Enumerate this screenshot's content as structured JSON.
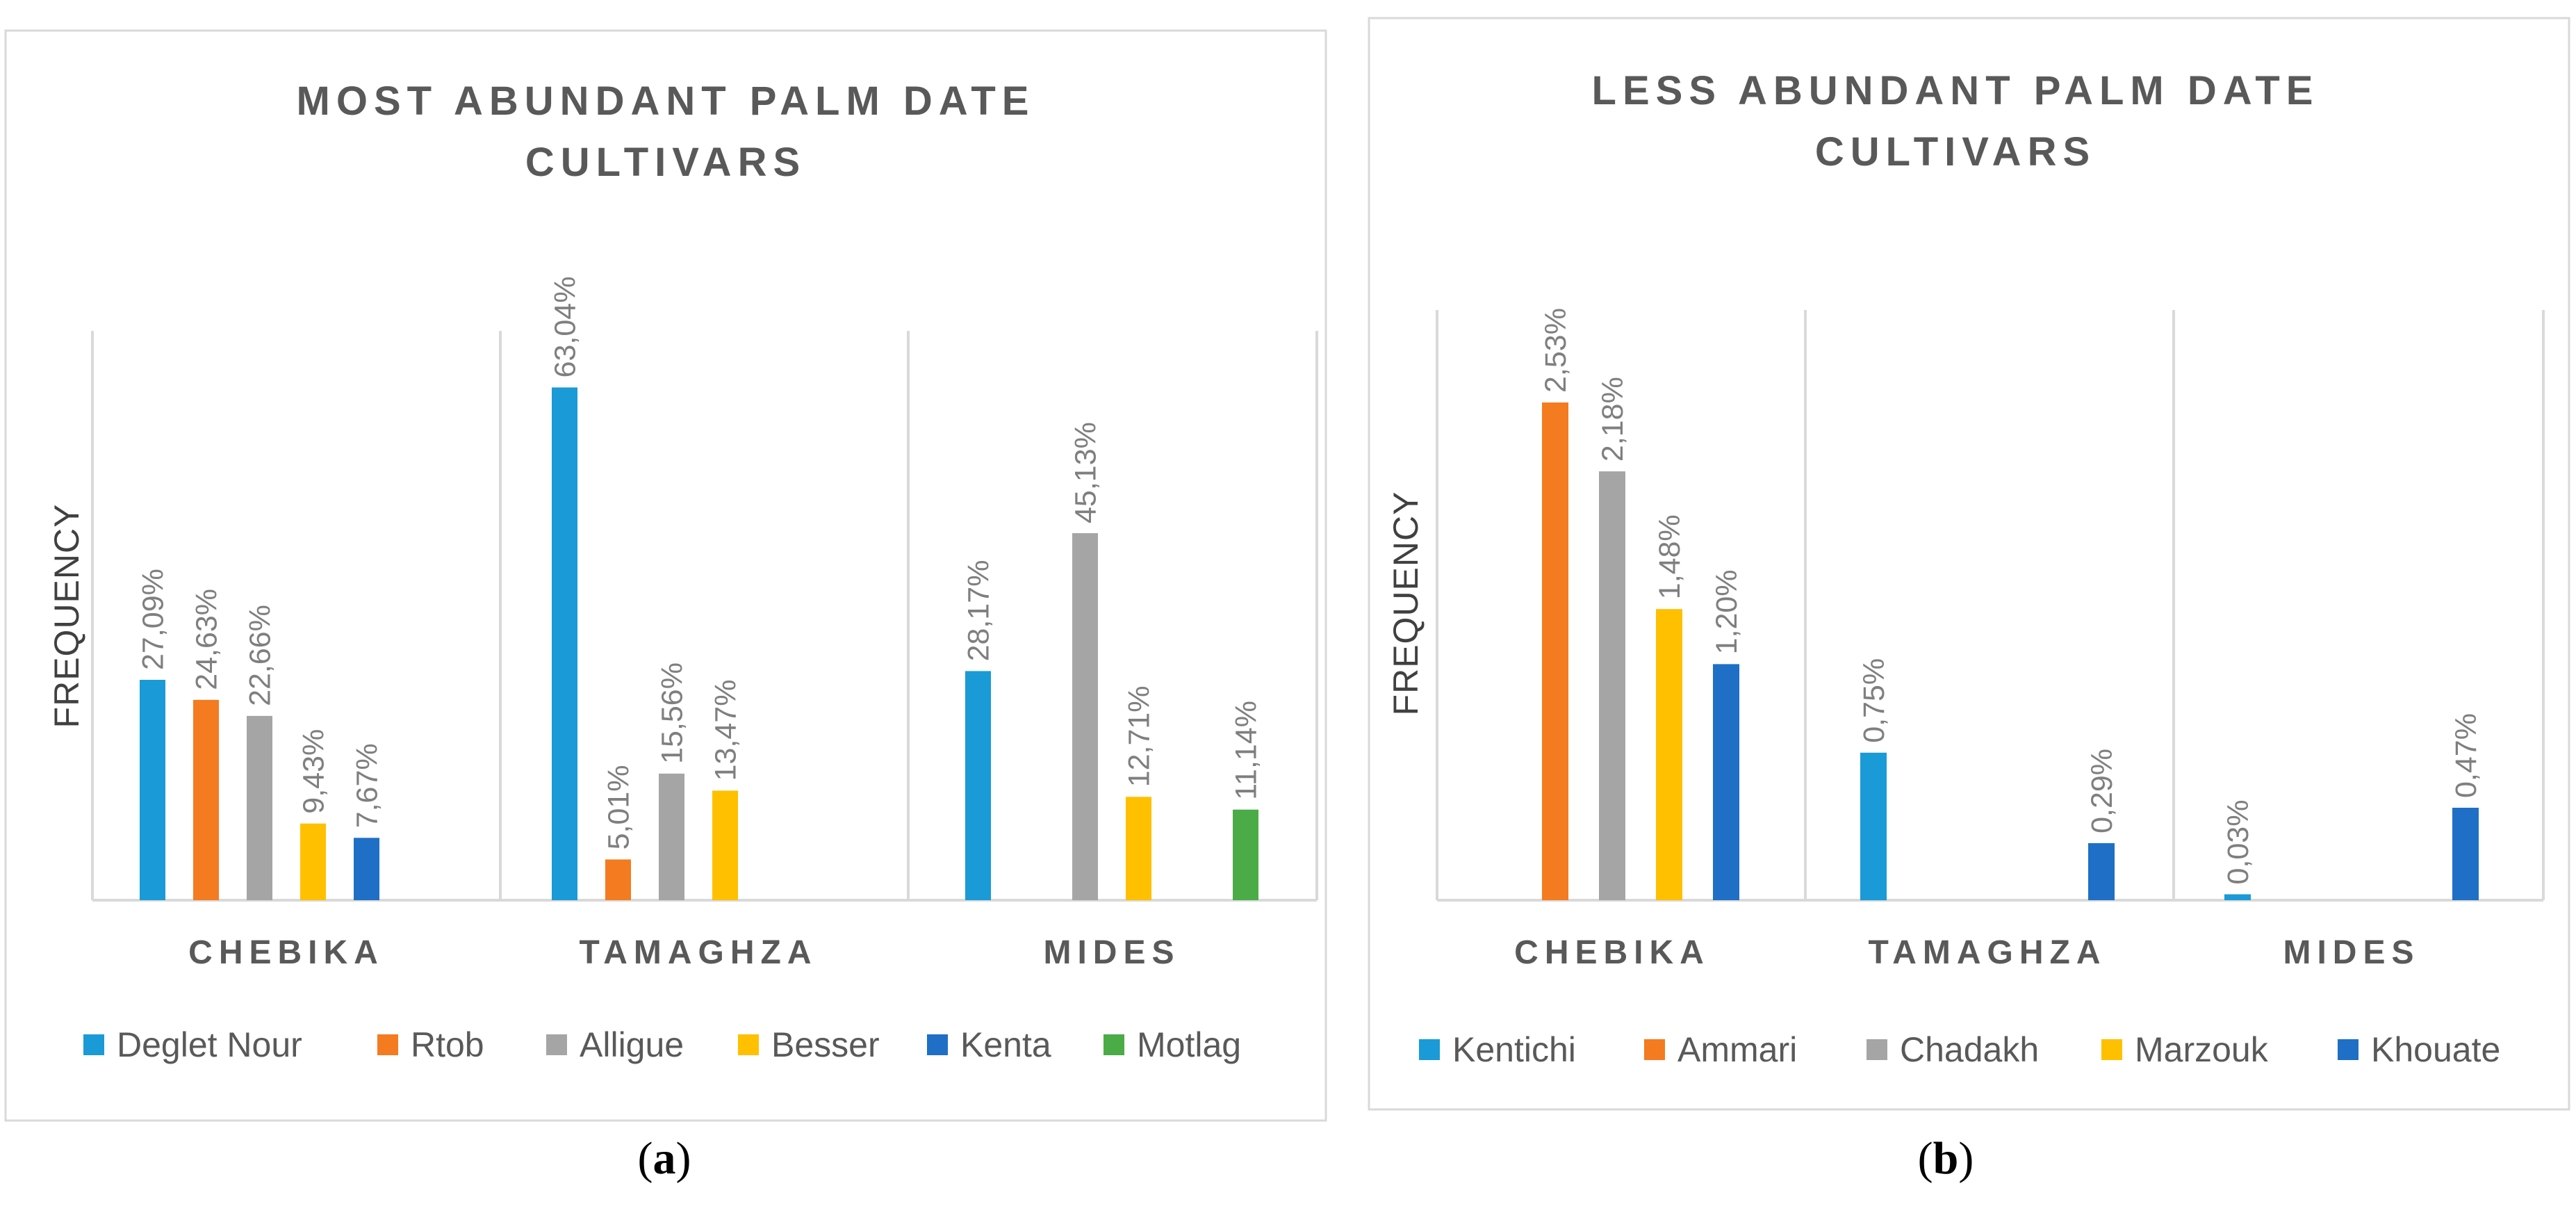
{
  "chart_data": [
    {
      "type": "bar",
      "panel_label": "a",
      "title_lines": [
        "MOST ABUNDANT PALM DATE",
        "CULTIVARS"
      ],
      "ylabel": "FREQUENCY",
      "xlabel": "",
      "categories": [
        "CHEBIKA",
        "TAMAGHZA",
        "MIDES"
      ],
      "series": [
        {
          "name": "Deglet Nour",
          "color": "#1a9ad6",
          "values": [
            27.09,
            63.04,
            28.17
          ]
        },
        {
          "name": "Rtob",
          "color": "#f47b20",
          "values": [
            24.63,
            5.01,
            null
          ]
        },
        {
          "name": "Alligue",
          "color": "#a5a5a5",
          "values": [
            22.66,
            15.56,
            45.13
          ]
        },
        {
          "name": "Besser",
          "color": "#ffc000",
          "values": [
            9.43,
            13.47,
            12.71
          ]
        },
        {
          "name": "Kenta",
          "color": "#1f6fc6",
          "values": [
            7.67,
            null,
            null
          ]
        },
        {
          "name": "Motlag",
          "color": "#4aab47",
          "values": [
            null,
            null,
            11.14
          ]
        }
      ],
      "data_labels": [
        [
          "27,09%",
          "63,04%",
          "28,17%"
        ],
        [
          "24,63%",
          "5,01%",
          null
        ],
        [
          "22,66%",
          "15,56%",
          "45,13%"
        ],
        [
          "9,43%",
          "13,47%",
          "12,71%"
        ],
        [
          "7,67%",
          null,
          null
        ],
        [
          null,
          null,
          "11,14%"
        ]
      ],
      "ylim": [
        0,
        70
      ],
      "grid": false,
      "legend_position": "bottom"
    },
    {
      "type": "bar",
      "panel_label": "b",
      "title_lines": [
        "LESS ABUNDANT PALM DATE",
        "CULTIVARS"
      ],
      "ylabel": "FREQUENCY",
      "xlabel": "",
      "categories": [
        "CHEBIKA",
        "TAMAGHZA",
        "MIDES"
      ],
      "series": [
        {
          "name": "Kentichi",
          "color": "#1a9ad6",
          "values": [
            null,
            0.75,
            0.03
          ]
        },
        {
          "name": "Ammari",
          "color": "#f47b20",
          "values": [
            2.53,
            null,
            null
          ]
        },
        {
          "name": "Chadakh",
          "color": "#a5a5a5",
          "values": [
            2.18,
            null,
            null
          ]
        },
        {
          "name": "Marzouk",
          "color": "#ffc000",
          "values": [
            1.48,
            null,
            null
          ]
        },
        {
          "name": "Khouate",
          "color": "#1f6fc6",
          "values": [
            1.2,
            0.29,
            0.47
          ]
        }
      ],
      "data_labels": [
        [
          null,
          "0,75%",
          "0,03%"
        ],
        [
          "2,53%",
          null,
          null
        ],
        [
          "2,18%",
          null,
          null
        ],
        [
          "1,48%",
          null,
          null
        ],
        [
          "1,20%",
          "0,29%",
          "0,47%"
        ]
      ],
      "ylim": [
        0,
        3.0
      ],
      "grid": false,
      "legend_position": "bottom"
    }
  ],
  "subfigure_labels": [
    "(a)",
    "(b)"
  ],
  "colors": {
    "frame": "#d9d9d9",
    "axis": "#d9d9d9",
    "title_text": "#595959",
    "data_label_text": "#7f7f7f",
    "background": "#ffffff"
  }
}
